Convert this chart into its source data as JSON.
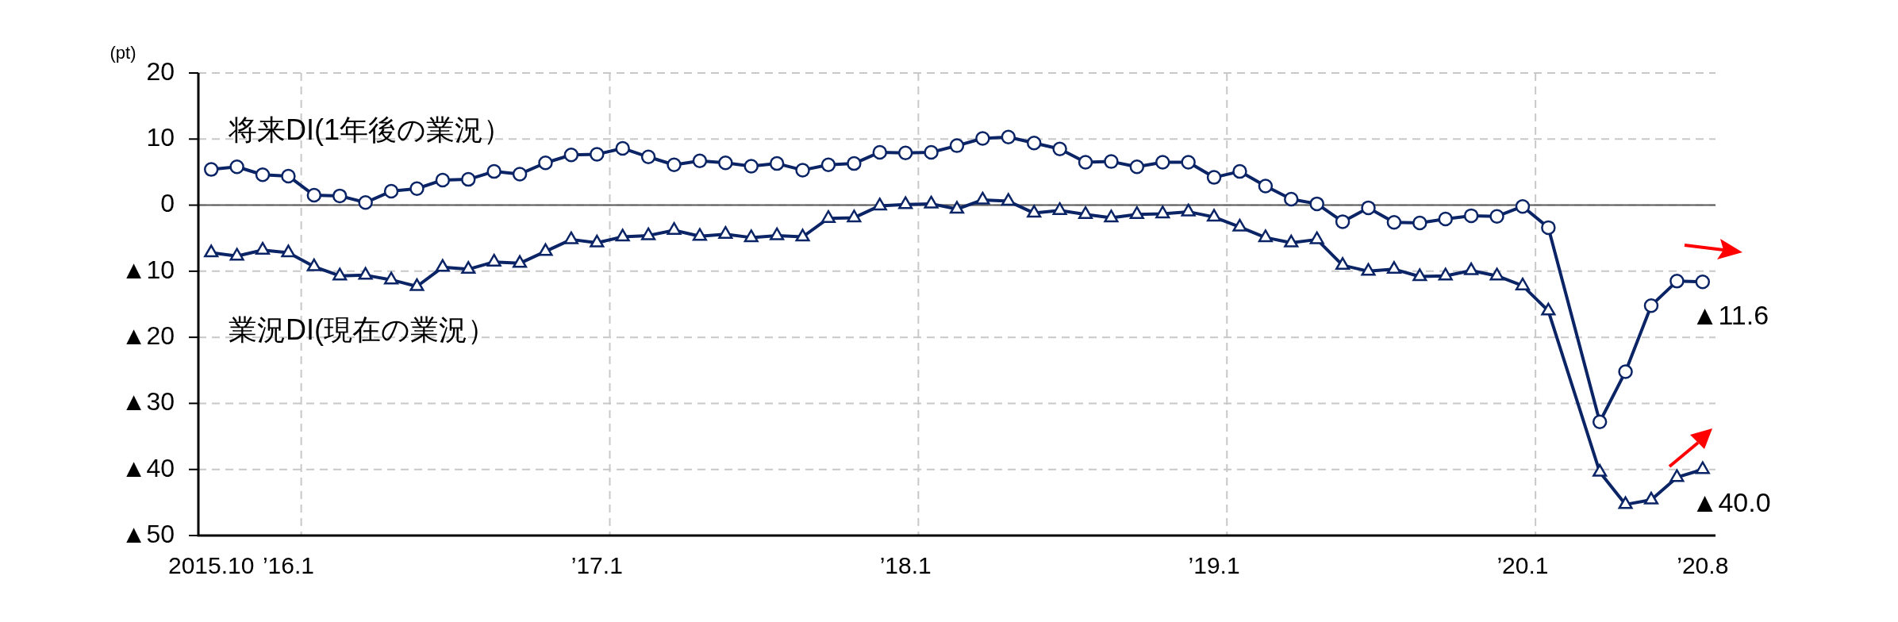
{
  "chart_data": {
    "type": "line",
    "ylabel": "(pt)",
    "categories": [
      "2015.10",
      null,
      null,
      "’16.1",
      null,
      null,
      null,
      null,
      null,
      null,
      null,
      null,
      null,
      null,
      null,
      "’17.1",
      null,
      null,
      null,
      null,
      null,
      null,
      null,
      null,
      null,
      null,
      null,
      "’18.1",
      null,
      null,
      null,
      null,
      null,
      null,
      null,
      null,
      null,
      null,
      null,
      "’19.1",
      null,
      null,
      null,
      null,
      null,
      null,
      null,
      null,
      null,
      null,
      null,
      "’20.1",
      null,
      null,
      null,
      null,
      null,
      null,
      "’20.8"
    ],
    "series": [
      {
        "name": "将来DI(1年後の業況）",
        "color": "#0b2466",
        "marker": "circle",
        "values": [
          5.4,
          5.8,
          4.6,
          4.4,
          1.5,
          1.4,
          0.4,
          2.1,
          2.5,
          3.8,
          3.9,
          5.1,
          4.7,
          6.4,
          7.6,
          7.7,
          8.6,
          7.3,
          6.1,
          6.7,
          6.4,
          5.9,
          6.3,
          5.3,
          6.1,
          6.3,
          8.0,
          7.9,
          8.0,
          9.0,
          10.1,
          10.3,
          9.4,
          8.5,
          6.5,
          6.6,
          5.8,
          6.5,
          6.5,
          4.2,
          5.1,
          2.9,
          0.9,
          0.2,
          -2.5,
          -0.4,
          -2.6,
          -2.7,
          -2.1,
          -1.6,
          -1.7,
          -0.2,
          -3.4,
          null,
          -32.8,
          -25.2,
          -15.2,
          -11.5,
          -11.6
        ]
      },
      {
        "name": "業況DI(現在の業況）",
        "color": "#0b2466",
        "marker": "triangle",
        "values": [
          -7.2,
          -7.7,
          -6.8,
          -7.2,
          -9.3,
          -10.7,
          -10.6,
          -11.3,
          -12.3,
          -9.4,
          -9.7,
          -8.6,
          -8.8,
          -7.0,
          -5.2,
          -5.7,
          -4.8,
          -4.6,
          -3.8,
          -4.7,
          -4.4,
          -4.9,
          -4.6,
          -4.8,
          -2.0,
          -1.9,
          -0.1,
          0.1,
          0.2,
          -0.6,
          0.8,
          0.6,
          -1.2,
          -0.8,
          -1.4,
          -1.9,
          -1.4,
          -1.3,
          -1.0,
          -1.8,
          -3.3,
          -4.9,
          -5.7,
          -5.2,
          -9.1,
          -10.0,
          -9.7,
          -10.8,
          -10.7,
          -9.9,
          -10.7,
          -12.2,
          -16.0,
          null,
          -40.4,
          -45.3,
          -44.6,
          -41.2,
          -40.0
        ]
      }
    ],
    "ylim": [
      -50,
      20
    ],
    "yticks": [
      20,
      10,
      0,
      {
        "value": -10,
        "label": "▲10"
      },
      {
        "value": -20,
        "label": "▲20"
      },
      {
        "value": -30,
        "label": "▲30"
      },
      {
        "value": -40,
        "label": "▲40"
      },
      {
        "value": -50,
        "label": "▲50"
      }
    ],
    "grid": true,
    "ref_lines": [
      {
        "axis": "y",
        "value": 0,
        "color": "#595959"
      }
    ],
    "annotations": [
      {
        "text": "▲11.6",
        "x": "’20.8",
        "y": -11.6
      },
      {
        "text": "▲40.0",
        "x": "’20.8",
        "y": -40.0
      }
    ]
  }
}
